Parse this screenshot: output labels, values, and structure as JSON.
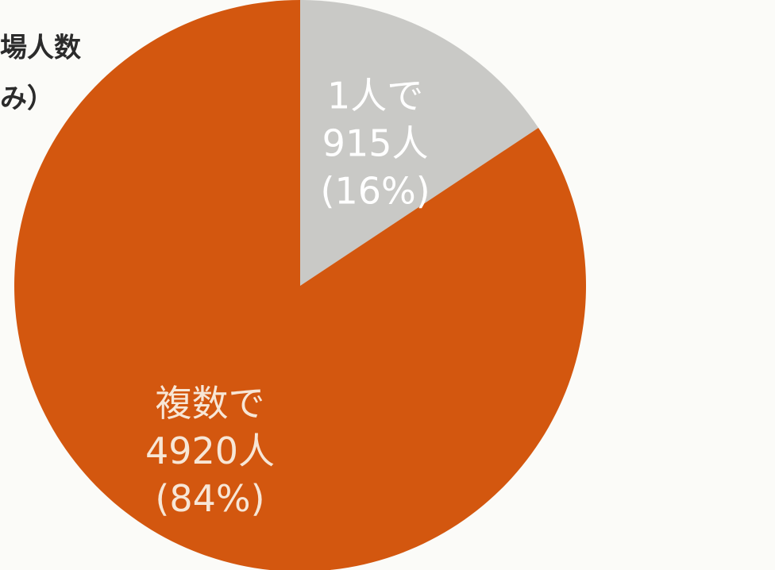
{
  "chart_data": {
    "type": "pie",
    "title_lines": [
      "場人数",
      "み）"
    ],
    "categories": [
      "1人で",
      "複数で"
    ],
    "values": [
      915,
      4920
    ],
    "value_labels": [
      "915人",
      "4920人"
    ],
    "percent_labels": [
      "(16%)",
      "(84%)"
    ],
    "colors": [
      "#c9c9c6",
      "#d3570f"
    ],
    "label_colors": [
      "#ffffff",
      "#f7e6d6"
    ]
  }
}
